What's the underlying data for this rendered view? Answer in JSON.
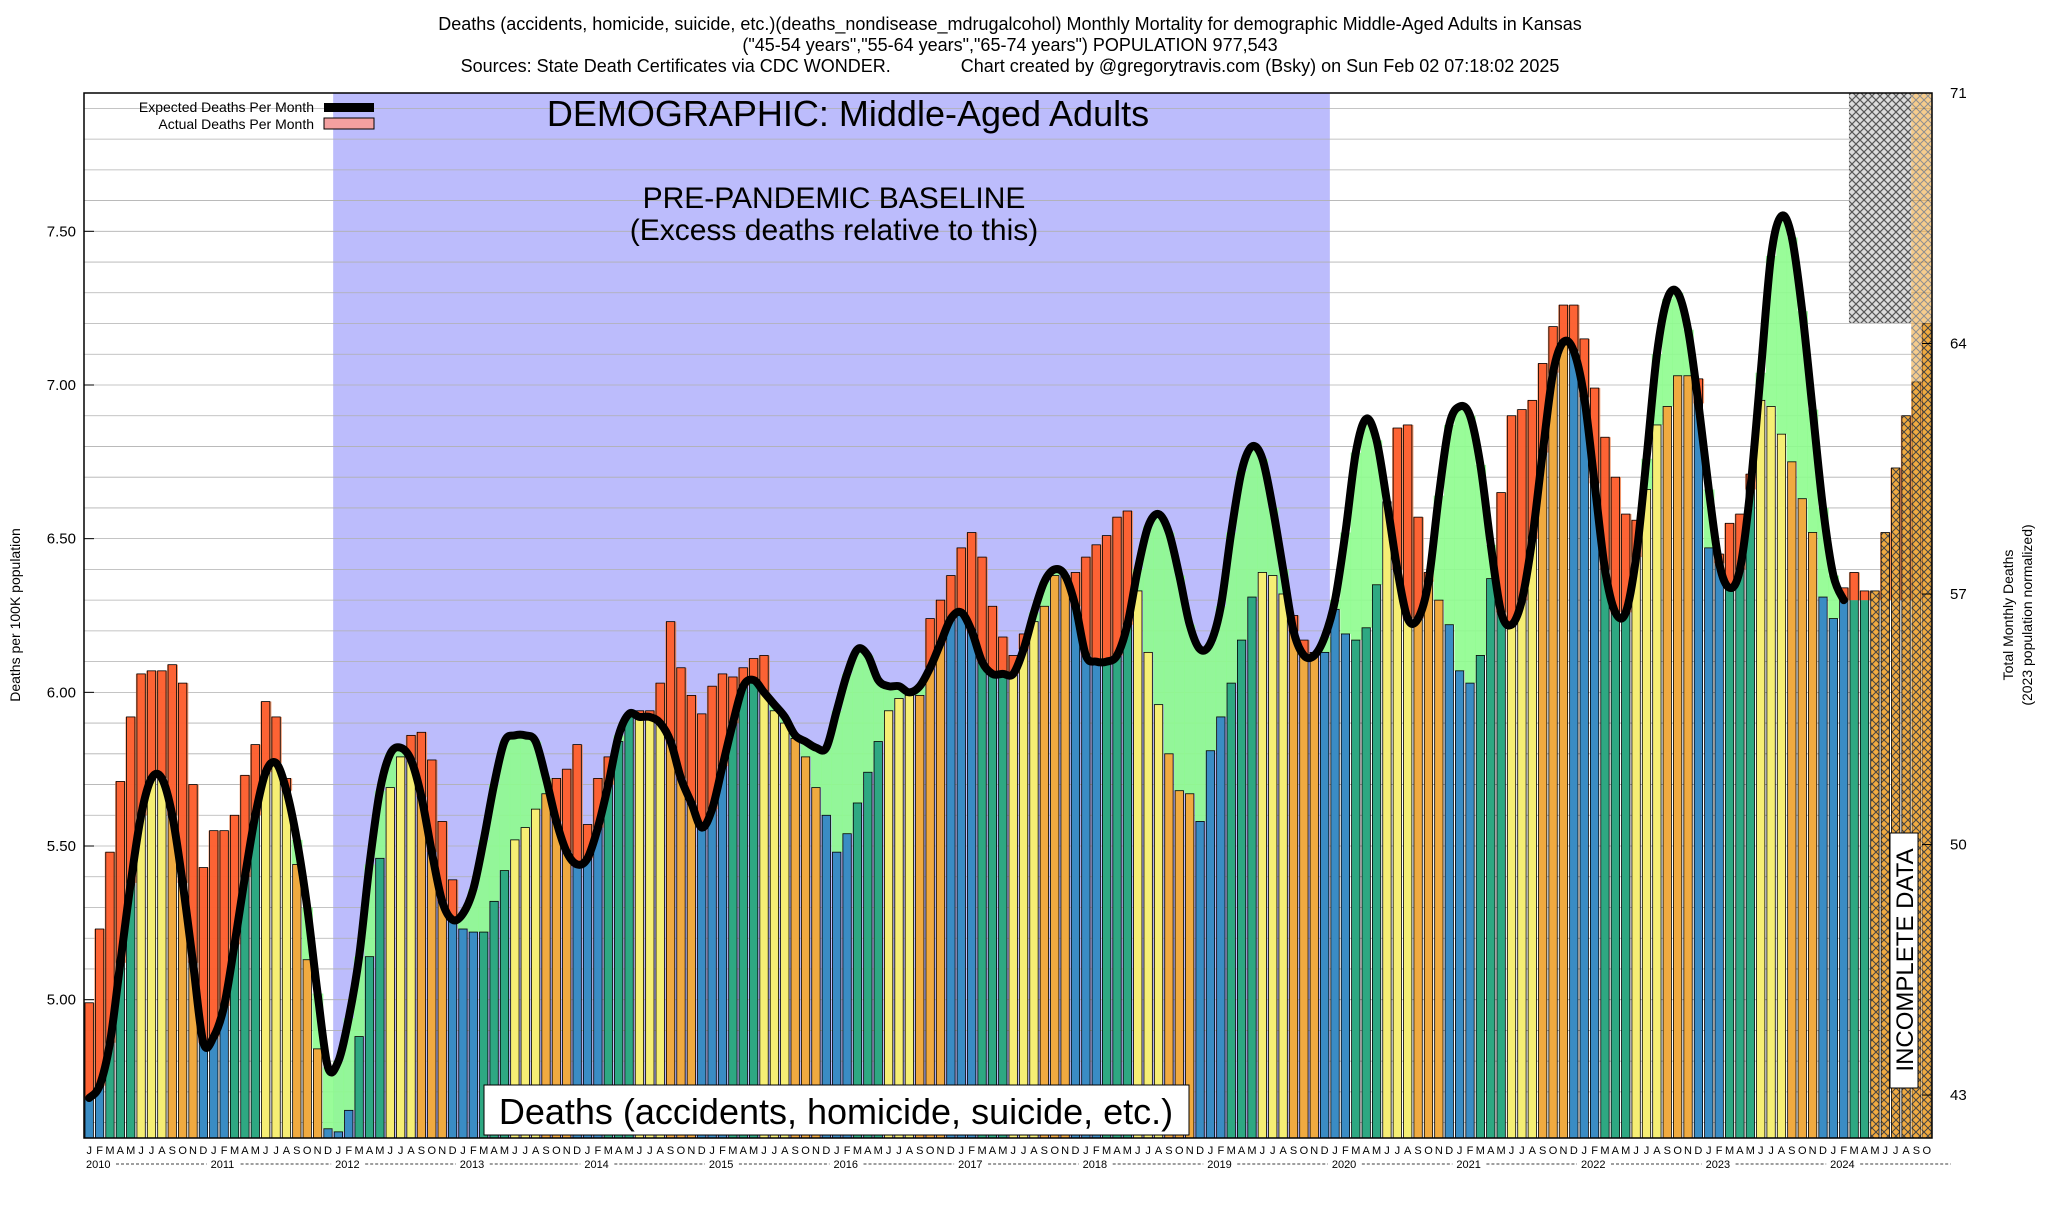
{
  "header": {
    "line1": "Deaths (accidents, homicide, suicide, etc.)(deaths_nondisease_mdrugalcohol) Monthly Mortality for demographic Middle-Aged Adults in Kansas",
    "line2": "(\"45-54 years\",\"55-64 years\",\"65-74 years\") POPULATION 977,543",
    "line3": "Sources: State Death Certificates via CDC WONDER.              Chart created by @gregorytravis.com (Bsky) on Sun Feb 02 07:18:02 2025"
  },
  "chart_data": {
    "type": "bar",
    "title": "Deaths (accidents, homicide, suicide, etc.)(deaths_nondisease_mdrugalcohol) Monthly Mortality for demographic Middle-Aged Adults in Kansas",
    "ylabel": "Deaths per 100K population",
    "y2label_line1": "Total Monthly Deaths",
    "y2label_line2": "(2023 population normalized)",
    "ylim": [
      4.55,
      7.95
    ],
    "y2lim": [
      41.8,
      71
    ],
    "yticks": [
      "5.00",
      "5.50",
      "6.00",
      "6.50",
      "7.00",
      "7.50"
    ],
    "y2ticks": [
      "43",
      "50",
      "57",
      "64",
      "71"
    ],
    "month_letters": [
      "J",
      "F",
      "M",
      "A",
      "M",
      "J",
      "J",
      "A",
      "S",
      "O",
      "N",
      "D"
    ],
    "last_partial_year_months": [
      "J",
      "F",
      "M",
      "A",
      "M",
      "J",
      "J",
      "A",
      "S",
      "O"
    ],
    "years": [
      "2010",
      "2011",
      "2012",
      "2013",
      "2014",
      "2015",
      "2016",
      "2017",
      "2018",
      "2019",
      "2020",
      "2021",
      "2022",
      "2023",
      "2024"
    ],
    "demographic_label": "DEMOGRAPHIC: Middle-Aged Adults",
    "baseline_label_line1": "PRE-PANDEMIC BASELINE",
    "baseline_label_line2": "(Excess deaths relative to this)",
    "bottom_label": "Deaths (accidents, homicide, suicide, etc.)",
    "incomplete_label": "INCOMPLETE DATA",
    "baseline_start_year": 2012,
    "baseline_end_year": 2020,
    "series": [
      {
        "name": "Actual Deaths Per Month",
        "values": [
          4.99,
          5.23,
          5.48,
          5.71,
          5.92,
          6.06,
          6.07,
          6.07,
          6.09,
          6.03,
          5.7,
          5.43,
          5.55,
          5.55,
          5.6,
          5.73,
          5.83,
          5.97,
          5.92,
          5.72,
          5.44,
          5.13,
          4.84,
          4.58,
          4.57,
          4.64,
          4.88,
          5.14,
          5.46,
          5.69,
          5.79,
          5.86,
          5.87,
          5.78,
          5.58,
          5.39,
          5.23,
          5.22,
          5.22,
          5.32,
          5.42,
          5.52,
          5.56,
          5.62,
          5.67,
          5.72,
          5.75,
          5.83,
          5.57,
          5.72,
          5.79,
          5.84,
          5.93,
          5.94,
          5.94,
          6.03,
          6.23,
          6.08,
          5.99,
          5.93,
          6.02,
          6.06,
          6.05,
          6.08,
          6.11,
          6.12,
          5.94,
          5.9,
          5.85,
          5.79,
          5.69,
          5.6,
          5.48,
          5.54,
          5.64,
          5.74,
          5.84,
          5.94,
          5.98,
          5.99,
          5.99,
          6.24,
          6.3,
          6.38,
          6.47,
          6.52,
          6.44,
          6.28,
          6.18,
          6.12,
          6.19,
          6.23,
          6.28,
          6.38,
          6.38,
          6.39,
          6.44,
          6.48,
          6.51,
          6.57,
          6.59,
          6.33,
          6.13,
          5.96,
          5.8,
          5.68,
          5.67,
          5.58,
          5.81,
          5.92,
          6.03,
          6.17,
          6.31,
          6.39,
          6.38,
          6.32,
          6.25,
          6.17,
          6.13,
          6.13,
          6.27,
          6.19,
          6.17,
          6.21,
          6.35,
          6.62,
          6.86,
          6.87,
          6.57,
          6.39,
          6.3,
          6.22,
          6.07,
          6.03,
          6.12,
          6.37,
          6.65,
          6.9,
          6.92,
          6.95,
          7.07,
          7.19,
          7.26,
          7.26,
          7.15,
          6.99,
          6.83,
          6.7,
          6.58,
          6.56,
          6.66,
          6.87,
          6.93,
          7.03,
          7.03,
          7.02,
          6.47,
          6.45,
          6.55,
          6.58,
          6.71,
          6.95,
          6.93,
          6.84,
          6.75,
          6.63,
          6.52,
          6.31,
          6.24,
          6.34,
          6.39,
          6.33,
          6.33,
          6.52,
          6.73,
          6.9,
          7.01,
          7.2
        ]
      },
      {
        "name": "Expected Deaths Per Month",
        "values": [
          4.68,
          4.72,
          4.86,
          5.12,
          5.38,
          5.6,
          5.72,
          5.72,
          5.6,
          5.38,
          5.12,
          4.86,
          4.88,
          4.98,
          5.18,
          5.4,
          5.6,
          5.74,
          5.77,
          5.68,
          5.52,
          5.3,
          5.02,
          4.78,
          4.8,
          4.94,
          5.14,
          5.44,
          5.68,
          5.8,
          5.82,
          5.78,
          5.66,
          5.48,
          5.32,
          5.26,
          5.28,
          5.36,
          5.52,
          5.7,
          5.84,
          5.86,
          5.86,
          5.84,
          5.72,
          5.58,
          5.48,
          5.44,
          5.46,
          5.56,
          5.7,
          5.86,
          5.93,
          5.92,
          5.92,
          5.9,
          5.84,
          5.72,
          5.64,
          5.56,
          5.62,
          5.76,
          5.9,
          6.02,
          6.04,
          6.0,
          5.96,
          5.92,
          5.86,
          5.84,
          5.82,
          5.82,
          5.94,
          6.06,
          6.14,
          6.12,
          6.04,
          6.02,
          6.02,
          6.0,
          6.02,
          6.08,
          6.16,
          6.24,
          6.26,
          6.2,
          6.1,
          6.06,
          6.06,
          6.06,
          6.14,
          6.26,
          6.36,
          6.4,
          6.38,
          6.28,
          6.12,
          6.1,
          6.1,
          6.12,
          6.22,
          6.4,
          6.54,
          6.58,
          6.52,
          6.38,
          6.22,
          6.14,
          6.16,
          6.28,
          6.52,
          6.72,
          6.8,
          6.76,
          6.6,
          6.4,
          6.2,
          6.12,
          6.12,
          6.18,
          6.3,
          6.52,
          6.78,
          6.89,
          6.82,
          6.62,
          6.4,
          6.24,
          6.24,
          6.36,
          6.64,
          6.87,
          6.93,
          6.9,
          6.74,
          6.48,
          6.26,
          6.22,
          6.3,
          6.5,
          6.78,
          7.04,
          7.14,
          7.11,
          6.96,
          6.68,
          6.4,
          6.26,
          6.26,
          6.44,
          6.76,
          7.1,
          7.28,
          7.3,
          7.18,
          6.94,
          6.66,
          6.42,
          6.34,
          6.4,
          6.66,
          7.04,
          7.42,
          7.55,
          7.48,
          7.24,
          6.92,
          6.6,
          6.38,
          6.3
        ]
      }
    ],
    "legend": [
      {
        "label": "Expected Deaths Per Month",
        "color": "#000000"
      },
      {
        "label": "Actual Deaths Per Month",
        "color": "#f4a0a0"
      }
    ],
    "legend_placement": "top-left",
    "colors": {
      "baseline_band": "#bcbcfc",
      "excess_fill": "#f08a5a",
      "deficit_fill": "#8efc8e",
      "winter": "#3a8cc4",
      "spring": "#2ea882",
      "summer": "#f6ee74",
      "autumn": "#f0aa40",
      "excess_overlay": "#ff5a2a"
    }
  }
}
